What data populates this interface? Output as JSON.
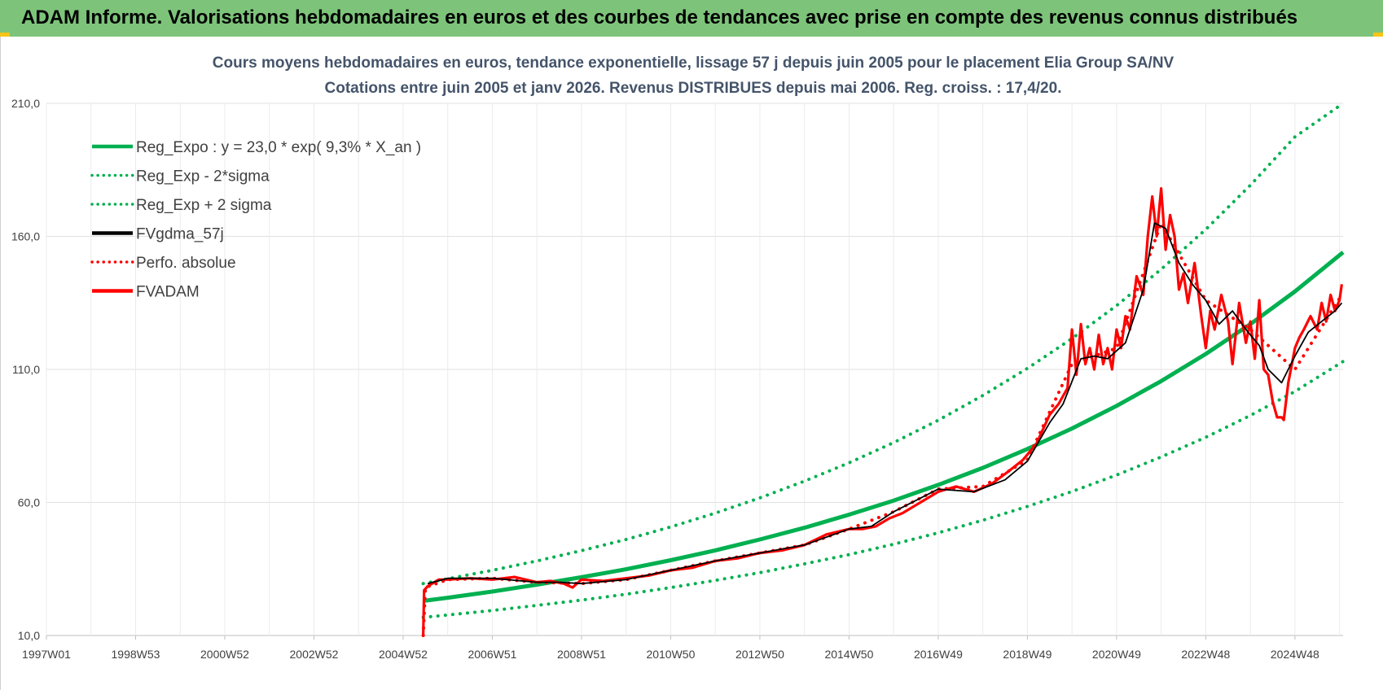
{
  "header": {
    "title": "ADAM Informe. Valorisations hebdomadaires en euros et des courbes de tendances avec prise en compte des revenus connus distribués"
  },
  "chart_data": {
    "type": "line",
    "title": "Cours moyens hebdomadaires en euros, tendance exponentielle, lissage 57 j depuis juin 2005 pour le placement Elia Group SA/NV",
    "subtitle": "Cotations entre juin 2005 et janv 2026. Revenus DISTRIBUES depuis mai 2006. Reg. croiss. : 17,4/20.",
    "xlabel": "",
    "ylabel": "",
    "x_tick_labels": [
      "1997W01",
      "1998W53",
      "2000W52",
      "2002W52",
      "2004W52",
      "2006W51",
      "2008W51",
      "2010W50",
      "2012W50",
      "2014W50",
      "2016W49",
      "2018W49",
      "2020W49",
      "2022W48",
      "2024W48"
    ],
    "x_range": [
      1997.0,
      2026.08
    ],
    "y_ticks": [
      "10,0",
      "60,0",
      "110,0",
      "160,0",
      "210,0"
    ],
    "ylim": [
      10,
      210
    ],
    "grid": true,
    "legend_position": "top-left",
    "series": [
      {
        "name": "Reg_Expo : y = 23,0 * exp( 9,3% *  X_an )",
        "style": "solid-thick",
        "color": "#00b050",
        "x": [
          2005.45,
          2006.0,
          2007.0,
          2008.0,
          2009.0,
          2010.0,
          2011.0,
          2012.0,
          2013.0,
          2014.0,
          2015.0,
          2016.0,
          2017.0,
          2018.0,
          2019.0,
          2020.0,
          2021.0,
          2022.0,
          2023.0,
          2024.0,
          2025.0,
          2026.08
        ],
        "values": [
          23.0,
          24.2,
          26.5,
          29.1,
          31.9,
          34.9,
          38.3,
          42.0,
          46.1,
          50.5,
          55.4,
          60.7,
          66.6,
          73.0,
          80.1,
          87.8,
          96.3,
          105.6,
          115.8,
          127.0,
          139.3,
          154.0
        ]
      },
      {
        "name": "Reg_Exp - 2*sigma",
        "style": "dotted",
        "color": "#00b050",
        "x": [
          2005.45,
          2006.0,
          2007.0,
          2008.0,
          2009.0,
          2010.0,
          2011.0,
          2012.0,
          2013.0,
          2014.0,
          2015.0,
          2016.0,
          2017.0,
          2018.0,
          2019.0,
          2020.0,
          2021.0,
          2022.0,
          2023.0,
          2024.0,
          2025.0,
          2026.08
        ],
        "values": [
          16.8,
          17.7,
          19.4,
          21.3,
          23.3,
          25.5,
          28.0,
          30.7,
          33.6,
          36.9,
          40.4,
          44.3,
          48.6,
          53.3,
          58.5,
          64.1,
          70.3,
          77.1,
          84.5,
          92.7,
          101.7,
          113.0
        ]
      },
      {
        "name": "Reg_Exp + 2 sigma",
        "style": "dotted",
        "color": "#00b050",
        "x": [
          2005.45,
          2006.0,
          2007.0,
          2008.0,
          2009.0,
          2010.0,
          2011.0,
          2012.0,
          2013.0,
          2014.0,
          2015.0,
          2016.0,
          2017.0,
          2018.0,
          2019.0,
          2020.0,
          2021.0,
          2022.0,
          2023.0,
          2024.0,
          2025.0,
          2026.08
        ],
        "values": [
          29.5,
          31.3,
          34.5,
          38.0,
          41.9,
          46.1,
          50.8,
          56.0,
          61.7,
          68.0,
          74.9,
          82.5,
          90.9,
          100.2,
          110.4,
          121.6,
          134.0,
          147.6,
          162.6,
          179.2,
          197.4,
          210.0
        ]
      },
      {
        "name": "FVgdma_57j",
        "style": "solid",
        "color": "#000000",
        "x": [
          2005.55,
          2006.0,
          2007.0,
          2008.0,
          2008.5,
          2009.0,
          2010.0,
          2011.0,
          2012.0,
          2013.0,
          2014.0,
          2015.0,
          2015.5,
          2016.0,
          2017.0,
          2017.8,
          2018.5,
          2019.0,
          2019.5,
          2019.8,
          2020.2,
          2020.5,
          2020.8,
          2021.2,
          2021.6,
          2021.85,
          2022.1,
          2022.4,
          2022.7,
          2023.0,
          2023.3,
          2023.6,
          2023.9,
          2024.2,
          2024.4,
          2024.7,
          2025.0,
          2025.3,
          2025.6,
          2025.9,
          2026.05
        ],
        "values": [
          29.5,
          31.5,
          31.5,
          30.0,
          30.0,
          29.5,
          31.0,
          34.5,
          38.0,
          41.0,
          44.0,
          50.0,
          51.0,
          56.5,
          65.0,
          64.0,
          68.5,
          75.5,
          90.0,
          97.0,
          114.0,
          115.0,
          114.0,
          120.0,
          140.0,
          165.0,
          163.0,
          150.0,
          142.0,
          136.0,
          127.0,
          132.0,
          125.0,
          119.0,
          110.0,
          105.0,
          115.0,
          124.0,
          128.0,
          132.0,
          135.0
        ]
      },
      {
        "name": "Perfo. absolue",
        "style": "dotted",
        "color": "#ff0000",
        "x": [
          2005.45,
          2005.5,
          2006.0,
          2007.0,
          2008.0,
          2009.0,
          2010.0,
          2011.0,
          2012.0,
          2013.0,
          2014.0,
          2015.0,
          2016.0,
          2017.0,
          2018.0,
          2019.0,
          2020.0,
          2021.0,
          2022.0,
          2023.0,
          2024.0,
          2025.0,
          2026.05
        ],
        "values": [
          10.0,
          28.0,
          31.0,
          31.5,
          30.0,
          29.5,
          31.0,
          34.5,
          38.0,
          41.0,
          44.0,
          50.0,
          56.5,
          65.0,
          66.0,
          76.0,
          112.0,
          118.0,
          165.0,
          136.0,
          125.0,
          110.0,
          138.0
        ]
      },
      {
        "name": "FVADAM",
        "style": "solid-thick",
        "color": "#ff0000",
        "x": [
          2005.45,
          2005.47,
          2005.55,
          2005.8,
          2006.0,
          2006.5,
          2007.0,
          2007.5,
          2008.0,
          2008.3,
          2008.6,
          2008.8,
          2009.0,
          2009.5,
          2010.0,
          2010.5,
          2011.0,
          2011.5,
          2012.0,
          2012.5,
          2013.0,
          2013.5,
          2014.0,
          2014.5,
          2015.0,
          2015.3,
          2015.6,
          2015.9,
          2016.2,
          2016.6,
          2017.0,
          2017.4,
          2017.8,
          2018.2,
          2018.6,
          2018.9,
          2019.2,
          2019.5,
          2019.7,
          2019.9,
          2020.0,
          2020.1,
          2020.2,
          2020.3,
          2020.4,
          2020.5,
          2020.6,
          2020.7,
          2020.8,
          2020.9,
          2021.0,
          2021.1,
          2021.2,
          2021.3,
          2021.45,
          2021.6,
          2021.7,
          2021.8,
          2021.9,
          2022.0,
          2022.1,
          2022.2,
          2022.3,
          2022.4,
          2022.5,
          2022.6,
          2022.75,
          2022.9,
          2023.0,
          2023.1,
          2023.2,
          2023.35,
          2023.5,
          2023.6,
          2023.75,
          2023.9,
          2024.0,
          2024.1,
          2024.2,
          2024.3,
          2024.4,
          2024.5,
          2024.6,
          2024.7,
          2024.75,
          2024.85,
          2025.0,
          2025.1,
          2025.2,
          2025.35,
          2025.5,
          2025.6,
          2025.7,
          2025.8,
          2025.9,
          2026.0,
          2026.05
        ],
        "values": [
          10.0,
          27.0,
          28.5,
          31.0,
          31.0,
          31.5,
          31.0,
          32.0,
          30.0,
          30.5,
          29.5,
          28.0,
          31.0,
          30.5,
          31.5,
          32.5,
          34.5,
          35.5,
          38.0,
          39.0,
          41.0,
          42.0,
          44.0,
          48.0,
          50.0,
          50.0,
          51.0,
          54.0,
          56.0,
          60.0,
          64.0,
          66.0,
          64.0,
          67.0,
          72.0,
          76.0,
          82.0,
          93.0,
          97.0,
          103.0,
          125.0,
          108.0,
          127.0,
          112.0,
          118.0,
          110.0,
          123.0,
          112.0,
          118.0,
          110.0,
          125.0,
          118.0,
          130.0,
          125.0,
          145.0,
          138.0,
          160.0,
          175.0,
          160.0,
          178.0,
          155.0,
          168.0,
          160.0,
          140.0,
          146.0,
          135.0,
          150.0,
          130.0,
          118.0,
          132.0,
          125.0,
          138.0,
          128.0,
          112.0,
          135.0,
          120.0,
          128.0,
          114.0,
          136.0,
          110.0,
          108.0,
          98.0,
          92.0,
          92.0,
          91.0,
          105.0,
          118.0,
          122.0,
          125.0,
          130.0,
          125.0,
          135.0,
          128.0,
          138.0,
          132.0,
          136.0,
          142.0
        ]
      }
    ]
  }
}
